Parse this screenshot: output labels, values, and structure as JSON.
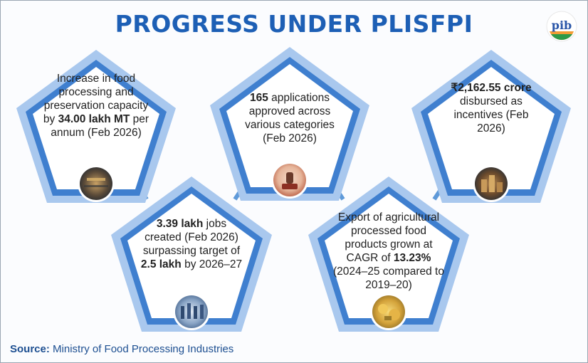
{
  "title": "PROGRESS UNDER PLISFPI",
  "logo_text": "pib",
  "cards": [
    {
      "id": "capacity",
      "pre": "Increase in food processing and preservation capacity by ",
      "bold": "34.00 lakh MT",
      "post": " per annum (Feb 2026)",
      "photo": "factory-photo"
    },
    {
      "id": "applications",
      "bold": "165",
      "post": " applications approved across various categories (Feb 2026)",
      "photo": "stamp-approval-photo"
    },
    {
      "id": "incentives",
      "bold": "₹2,162.55 crore",
      "post": " disbursed as incentives (Feb 2026)",
      "photo": "coins-photo"
    },
    {
      "id": "jobs",
      "bold": "3.39 lakh",
      "post": " jobs created (Feb 2026) surpassing target of ",
      "bold2": "2.5 lakh",
      "post2": " by 2026–27",
      "photo": "workers-photo"
    },
    {
      "id": "exports",
      "pre": "Export of agricultural processed food products grown at CAGR of ",
      "bold": "13.23%",
      "post": " (2024–25 compared to 2019–20)",
      "photo": "processed-food-photo"
    }
  ],
  "source": {
    "label": "Source:",
    "text": " Ministry of Food Processing Industries"
  },
  "colors": {
    "title": "#1d5fb5",
    "pentagon_border": "#3f7fcf",
    "pentagon_border_light": "#a9c8ee",
    "pentagon_fill": "#ffffff",
    "connector": "#5f9ad9",
    "source": "#1d4f91"
  }
}
